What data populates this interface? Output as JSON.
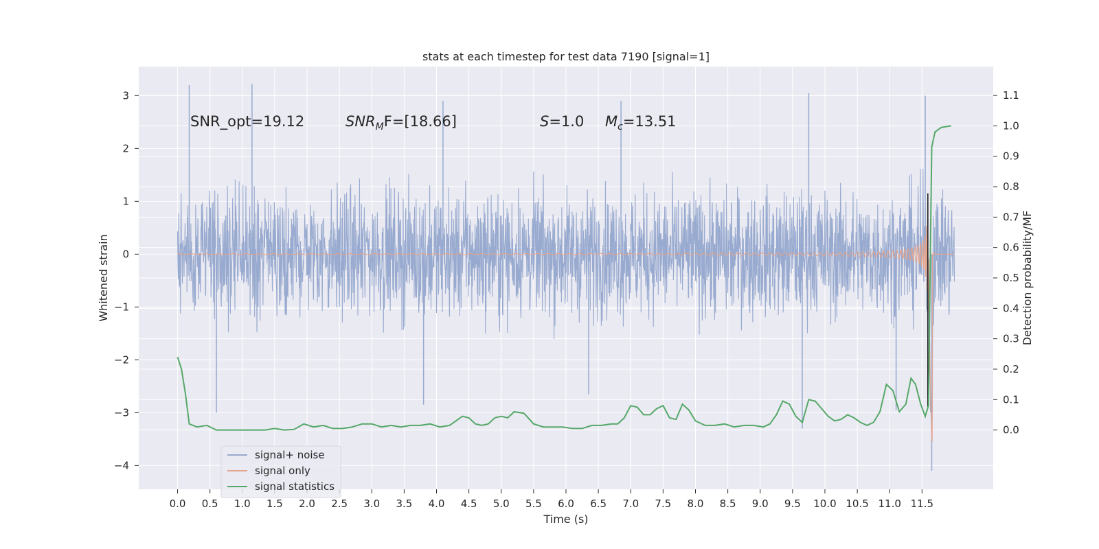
{
  "title": "stats at each timestep for test data 7190 [signal=1]",
  "chart_data": {
    "type": "line",
    "title": "stats at each timestep for test data 7190 [signal=1]",
    "xlabel": "Time (s)",
    "ylabel": "Whitened strain",
    "ylabel_right": "Detection probability/MF",
    "xlim": [
      -0.6,
      12.6
    ],
    "ylim_left": [
      -4.45,
      3.55
    ],
    "ylim_right": [
      -0.195,
      1.195
    ],
    "x_ticks": [
      "0.0",
      "0.5",
      "1.0",
      "1.5",
      "2.0",
      "2.5",
      "3.0",
      "3.5",
      "4.0",
      "4.5",
      "5.0",
      "5.5",
      "6.0",
      "6.5",
      "7.0",
      "7.5",
      "8.0",
      "8.5",
      "9.0",
      "9.5",
      "10.0",
      "10.5",
      "11.0",
      "11.5"
    ],
    "y_ticks_left": [
      "3",
      "2",
      "1",
      "0",
      "−1",
      "−2",
      "−3",
      "−4"
    ],
    "y_ticks_right": [
      "1.1",
      "1.0",
      "0.9",
      "0.8",
      "0.7",
      "0.6",
      "0.5",
      "0.4",
      "0.3",
      "0.2",
      "0.1",
      "0.0"
    ],
    "grid": true,
    "legend_position": "lower-left",
    "annotations": [
      {
        "label": "SNR_opt=19.12"
      },
      {
        "label_main": "SNR",
        "label_sub": "M",
        "label_rest": "F=[18.66]"
      },
      {
        "label_main": "S",
        "label_rest": "=1.0"
      },
      {
        "label_main": "M",
        "label_sub": "c",
        "label_rest": "=13.51"
      }
    ],
    "series": [
      {
        "name": "signal+ noise",
        "color": "#98aacf",
        "axis": "left",
        "description_stats": {
          "typical_min": -2.0,
          "typical_max": 2.0,
          "peak_max": 3.25,
          "peak_min": -4.1
        },
        "highlight_spikes": [
          {
            "x": 0.18,
            "y": 3.2
          },
          {
            "x": 1.15,
            "y": 3.22
          },
          {
            "x": 4.1,
            "y": 2.9
          },
          {
            "x": 6.85,
            "y": 2.9
          },
          {
            "x": 9.75,
            "y": 3.05
          },
          {
            "x": 11.55,
            "y": 3.0
          },
          {
            "x": 0.6,
            "y": -3.0
          },
          {
            "x": 3.8,
            "y": -2.85
          },
          {
            "x": 9.65,
            "y": -3.3
          },
          {
            "x": 11.65,
            "y": -4.1
          },
          {
            "x": 6.35,
            "y": -2.65
          },
          {
            "x": 11.1,
            "y": -2.95
          }
        ]
      },
      {
        "name": "signal only",
        "color": "#e4a48c",
        "axis": "left",
        "description": "chirp, amplitude near 0 until ~8.0 s, growing to ~1.1 near 11.55 s, merger ~11.6 s, minimum ~-3.55 at 11.65 s, then ringdown to 0"
      },
      {
        "name": "signal statistics",
        "color": "#55a868",
        "axis": "right",
        "x": [
          0.0,
          0.06,
          0.12,
          0.18,
          0.3,
          0.45,
          0.6,
          0.75,
          0.9,
          1.05,
          1.2,
          1.35,
          1.5,
          1.65,
          1.8,
          1.95,
          2.1,
          2.25,
          2.4,
          2.55,
          2.7,
          2.85,
          3.0,
          3.15,
          3.3,
          3.45,
          3.6,
          3.75,
          3.9,
          4.05,
          4.2,
          4.3,
          4.4,
          4.5,
          4.6,
          4.7,
          4.8,
          4.9,
          5.0,
          5.1,
          5.2,
          5.35,
          5.5,
          5.65,
          5.8,
          5.95,
          6.1,
          6.25,
          6.4,
          6.55,
          6.7,
          6.8,
          6.9,
          7.0,
          7.1,
          7.2,
          7.3,
          7.4,
          7.5,
          7.6,
          7.7,
          7.8,
          7.9,
          8.0,
          8.15,
          8.3,
          8.45,
          8.6,
          8.75,
          8.9,
          9.05,
          9.15,
          9.25,
          9.35,
          9.45,
          9.55,
          9.65,
          9.75,
          9.85,
          9.95,
          10.05,
          10.15,
          10.25,
          10.35,
          10.45,
          10.55,
          10.65,
          10.75,
          10.85,
          10.95,
          11.05,
          11.15,
          11.25,
          11.33,
          11.4,
          11.48,
          11.55,
          11.6,
          11.63,
          11.65,
          11.7,
          11.8,
          11.95
        ],
        "y": [
          0.24,
          0.2,
          0.12,
          0.02,
          0.01,
          0.015,
          0.0,
          0.0,
          0.0,
          0.0,
          0.0,
          0.0,
          0.005,
          0.0,
          0.002,
          0.02,
          0.01,
          0.015,
          0.005,
          0.005,
          0.01,
          0.02,
          0.02,
          0.01,
          0.015,
          0.01,
          0.015,
          0.015,
          0.02,
          0.01,
          0.015,
          0.03,
          0.045,
          0.04,
          0.02,
          0.015,
          0.02,
          0.04,
          0.045,
          0.04,
          0.06,
          0.055,
          0.02,
          0.01,
          0.01,
          0.01,
          0.005,
          0.005,
          0.015,
          0.015,
          0.02,
          0.02,
          0.04,
          0.08,
          0.075,
          0.05,
          0.05,
          0.07,
          0.08,
          0.04,
          0.035,
          0.085,
          0.065,
          0.03,
          0.015,
          0.015,
          0.02,
          0.01,
          0.015,
          0.015,
          0.01,
          0.02,
          0.05,
          0.095,
          0.085,
          0.045,
          0.025,
          0.1,
          0.095,
          0.07,
          0.045,
          0.03,
          0.035,
          0.05,
          0.04,
          0.025,
          0.015,
          0.025,
          0.06,
          0.15,
          0.13,
          0.06,
          0.085,
          0.17,
          0.15,
          0.085,
          0.045,
          0.08,
          0.6,
          0.93,
          0.98,
          0.995,
          1.0
        ]
      }
    ]
  },
  "legend": {
    "items": [
      {
        "label": "signal+ noise",
        "color": "#98aacf"
      },
      {
        "label": "signal only",
        "color": "#e4a48c"
      },
      {
        "label": "signal statistics",
        "color": "#55a868"
      }
    ]
  },
  "colors": {
    "plot_background": "#eaeaf2",
    "grid": "#ffffff",
    "text": "#262626"
  }
}
